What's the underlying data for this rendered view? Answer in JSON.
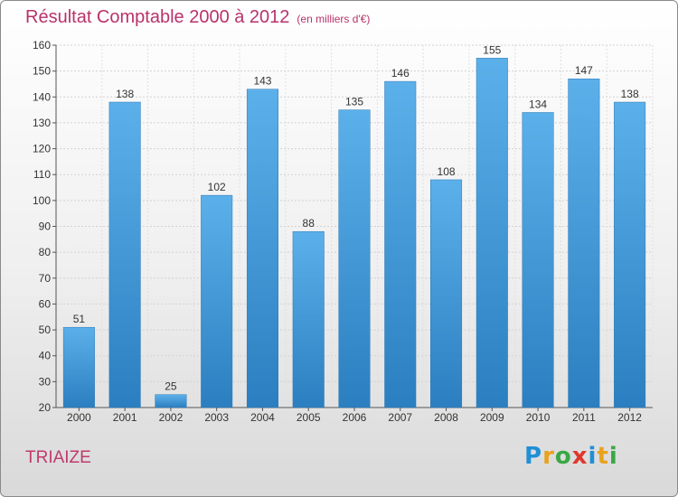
{
  "header": {
    "title": "Résultat Comptable 2000 à 2012",
    "unit": "(en milliers d'€)"
  },
  "commune": "TRIAIZE",
  "logo": {
    "letters": [
      "P",
      "r",
      "o",
      "x",
      "i",
      "t",
      "i"
    ],
    "colors": [
      "#1f8fd6",
      "#e8a21c",
      "#39a845",
      "#e0362c",
      "#1f8fd6",
      "#e8a21c",
      "#39a845"
    ]
  },
  "chart_data": {
    "type": "bar",
    "title": "Résultat Comptable 2000 à 2012",
    "xlabel": "",
    "ylabel": "",
    "categories": [
      "2000",
      "2001",
      "2002",
      "2003",
      "2004",
      "2005",
      "2006",
      "2007",
      "2008",
      "2009",
      "2010",
      "2011",
      "2012"
    ],
    "values": [
      51,
      138,
      25,
      102,
      143,
      88,
      135,
      146,
      108,
      155,
      134,
      147,
      138
    ],
    "ylim": [
      20,
      160
    ],
    "yticks": [
      20,
      30,
      40,
      50,
      60,
      70,
      80,
      90,
      100,
      110,
      120,
      130,
      140,
      150,
      160
    ],
    "grid": true,
    "bar_color": "#3f9ad8"
  }
}
